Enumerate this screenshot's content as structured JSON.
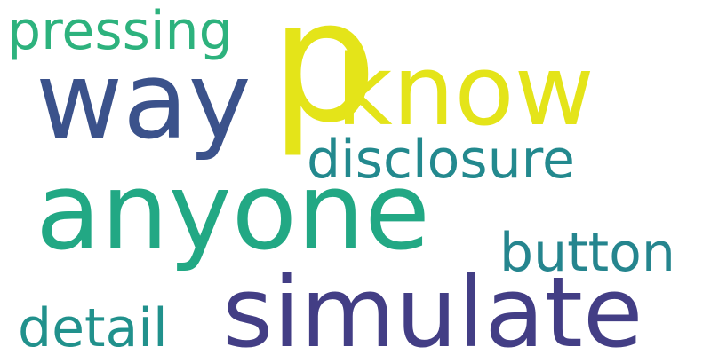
{
  "words": [
    {
      "text": "p",
      "color": "#e4e419"
    },
    {
      "text": "know",
      "color": "#e4e419"
    },
    {
      "text": "way",
      "color": "#3b528b"
    },
    {
      "text": "anyone",
      "color": "#22a884"
    },
    {
      "text": "simulate",
      "color": "#433e85"
    },
    {
      "text": "pressing",
      "color": "#2db27d"
    },
    {
      "text": "disclosure",
      "color": "#23898e"
    },
    {
      "text": "button",
      "color": "#25858e"
    },
    {
      "text": "detail",
      "color": "#21918c"
    }
  ]
}
